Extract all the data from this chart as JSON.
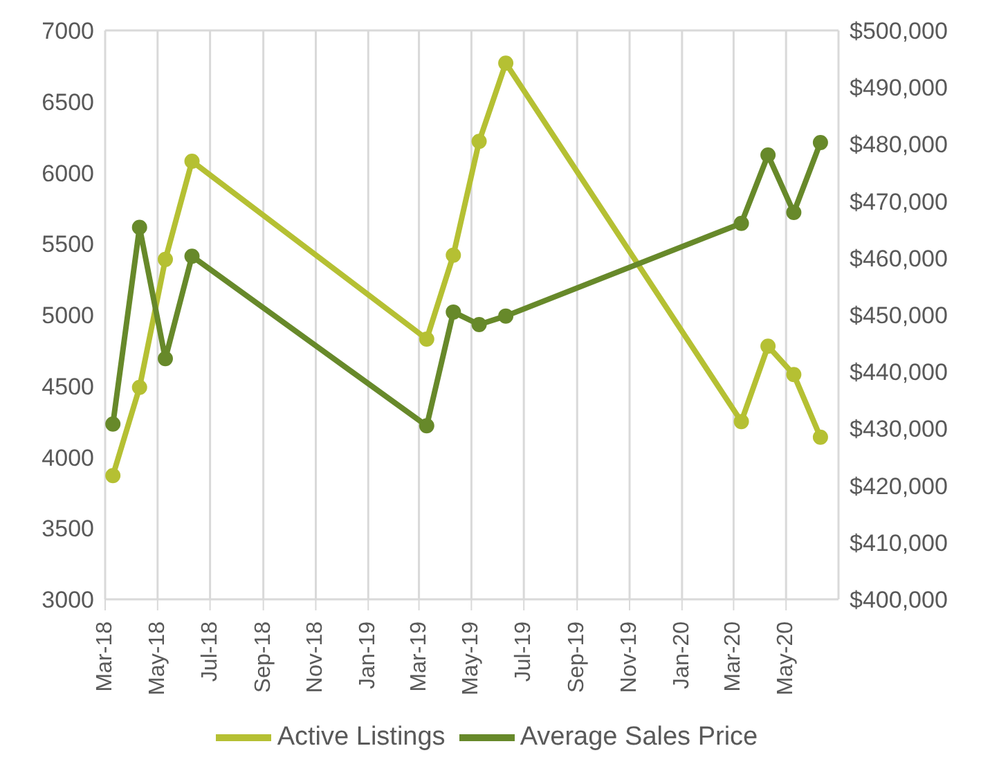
{
  "chart_data": {
    "type": "line",
    "x": [
      "2018-03-10",
      "2018-04-10",
      "2018-05-10",
      "2018-06-10",
      "2019-03-10",
      "2019-04-10",
      "2019-05-10",
      "2019-06-10",
      "2020-03-10",
      "2020-04-10",
      "2020-05-10",
      "2020-06-10"
    ],
    "series": [
      {
        "name": "Active Listings",
        "color": "#b5c033",
        "values": [
          3870,
          4490,
          5390,
          6080,
          4830,
          5420,
          6220,
          6770,
          4250,
          4780,
          4580,
          4140
        ]
      },
      {
        "name": "Average Sales Price",
        "color": "#67892a",
        "axis": "y2",
        "values": [
          430800,
          465400,
          442300,
          460300,
          430500,
          450500,
          448300,
          449800,
          466100,
          478100,
          468000,
          480300
        ]
      }
    ],
    "xlim": [
      "2018-03-01",
      "2020-07-01"
    ],
    "xticks": [
      {
        "value": "2018-03-01",
        "label": "Mar-18"
      },
      {
        "value": "2018-05-01",
        "label": "May-18"
      },
      {
        "value": "2018-07-01",
        "label": "Jul-18"
      },
      {
        "value": "2018-09-01",
        "label": "Sep-18"
      },
      {
        "value": "2018-11-01",
        "label": "Nov-18"
      },
      {
        "value": "2019-01-01",
        "label": "Jan-19"
      },
      {
        "value": "2019-03-01",
        "label": "Mar-19"
      },
      {
        "value": "2019-05-01",
        "label": "May-19"
      },
      {
        "value": "2019-07-01",
        "label": "Jul-19"
      },
      {
        "value": "2019-09-01",
        "label": "Sep-19"
      },
      {
        "value": "2019-11-01",
        "label": "Nov-19"
      },
      {
        "value": "2020-01-01",
        "label": "Jan-20"
      },
      {
        "value": "2020-03-01",
        "label": "Mar-20"
      },
      {
        "value": "2020-05-01",
        "label": "May-20"
      }
    ],
    "ylim": [
      3000,
      7000
    ],
    "yticks": [
      3000,
      3500,
      4000,
      4500,
      5000,
      5500,
      6000,
      6500,
      7000
    ],
    "y2lim": [
      400000,
      500000
    ],
    "y2ticks": [
      {
        "value": 400000,
        "label": "$400,000"
      },
      {
        "value": 410000,
        "label": "$410,000"
      },
      {
        "value": 420000,
        "label": "$420,000"
      },
      {
        "value": 430000,
        "label": "$430,000"
      },
      {
        "value": 440000,
        "label": "$440,000"
      },
      {
        "value": 450000,
        "label": "$450,000"
      },
      {
        "value": 460000,
        "label": "$460,000"
      },
      {
        "value": 470000,
        "label": "$470,000"
      },
      {
        "value": 480000,
        "label": "$480,000"
      },
      {
        "value": 490000,
        "label": "$490,000"
      },
      {
        "value": 500000,
        "label": "$500,000"
      }
    ],
    "grid": true,
    "legend": "bottom",
    "marker": "circle",
    "line_style": "solid"
  }
}
